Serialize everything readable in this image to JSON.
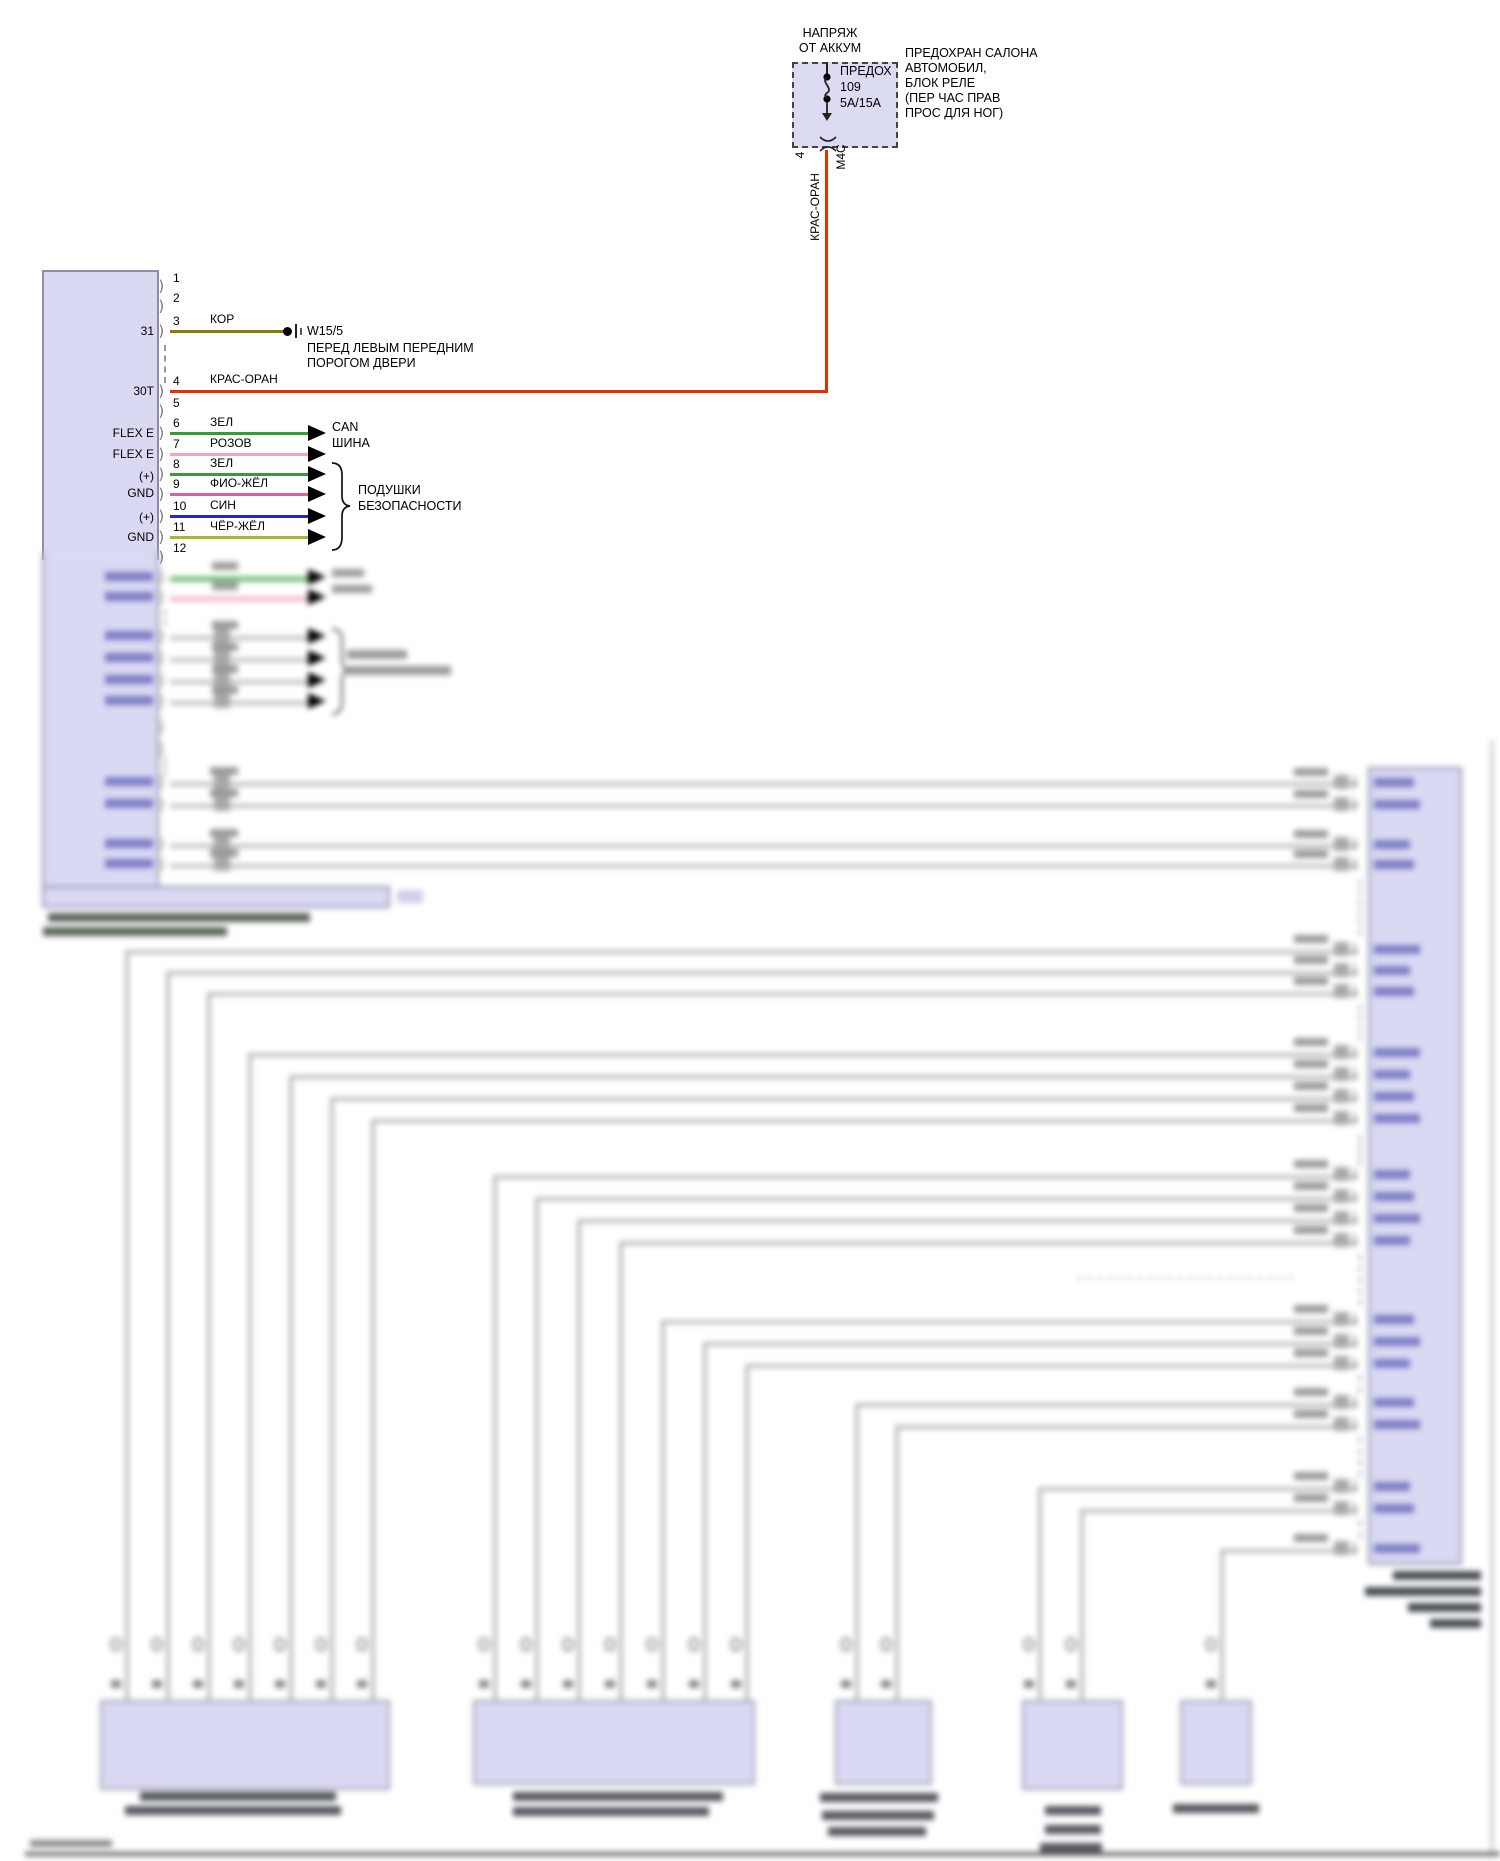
{
  "fuse_box": {
    "supply_lines": [
      "НАПРЯЖ",
      "ОТ АККУМ"
    ],
    "fuse_label": "ПРЕДОХ",
    "fuse_number": "109",
    "fuse_rating": "5А/15А",
    "location_note_lines": [
      "ПРЕДОХРАН САЛОНА",
      "АВТОМОБИЛ,",
      "БЛОК РЕЛЕ",
      "(ПЕР ЧАС ПРАВ",
      "ПРОС ДЛЯ НОГ)"
    ],
    "output_pin": "4",
    "output_connector": "М4С",
    "output_wire_label": "КРАС-ОРАН",
    "output_wire_color": "#e03008"
  },
  "left_connector": {
    "pins": [
      {
        "num": "1",
        "side": "",
        "wire_label": "",
        "wire_color": ""
      },
      {
        "num": "2",
        "side": "",
        "wire_label": "",
        "wire_color": ""
      },
      {
        "num": "3",
        "side": "31",
        "wire_label": "КОР",
        "wire_color": "#8e7c00"
      },
      {
        "num": "4",
        "side": "30Т",
        "wire_label": "КРАС-ОРАН",
        "wire_color": "#e03008"
      },
      {
        "num": "5",
        "side": "",
        "wire_label": "",
        "wire_color": ""
      },
      {
        "num": "6",
        "side": "FLEX E",
        "wire_label": "ЗЕЛ",
        "wire_color": "#379b37"
      },
      {
        "num": "7",
        "side": "FLEX E",
        "wire_label": "РОЗОВ",
        "wire_color": "#f0a6c0"
      },
      {
        "num": "8",
        "side": "(+)",
        "wire_label": "ЗЕЛ",
        "wire_color": "#379b37"
      },
      {
        "num": "9",
        "side": "GND",
        "wire_label": "ФИО-ЖЁЛ",
        "wire_color": "#e05ca6"
      },
      {
        "num": "10",
        "side": "(+)",
        "wire_label": "СИН",
        "wire_color": "#2626c6"
      },
      {
        "num": "11",
        "side": "GND",
        "wire_label": "ЧЁР-ЖЁЛ",
        "wire_color": "#b2b232"
      },
      {
        "num": "12",
        "side": "",
        "wire_label": "",
        "wire_color": ""
      }
    ]
  },
  "ground": {
    "code": "W15/5",
    "note_lines": [
      "ПЕРЕД ЛЕВЫМ ПЕРЕДНИМ",
      "ПОРОГОМ ДВЕРИ"
    ]
  },
  "can_bus": {
    "lines": [
      "CAN",
      "ШИНА"
    ]
  },
  "airbags": {
    "lines": [
      "ПОДУШКИ",
      "БЕЗОПАСНОСТИ"
    ]
  }
}
